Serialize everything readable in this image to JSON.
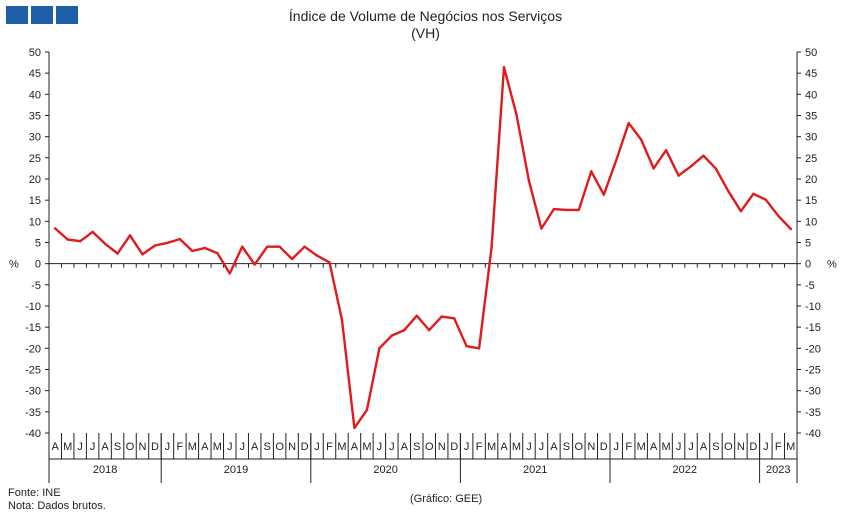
{
  "logo_color": "#1f5ea8",
  "chart_data": {
    "type": "line",
    "title": "Índice de Volume de Negócios nos Serviços",
    "subtitle": "(VH)",
    "ylabel_left": "%",
    "ylabel_right": "%",
    "ylim": [
      -40,
      50
    ],
    "yticks": [
      50,
      45,
      40,
      35,
      30,
      25,
      20,
      15,
      10,
      5,
      0,
      -5,
      -10,
      -15,
      -20,
      -25,
      -30,
      -35,
      -40
    ],
    "grid": false,
    "legend": "none",
    "line_color": "#e31a1c",
    "months": [
      "A",
      "M",
      "J",
      "J",
      "A",
      "S",
      "O",
      "N",
      "D",
      "J",
      "F",
      "M",
      "A",
      "M",
      "J",
      "J",
      "A",
      "S",
      "O",
      "N",
      "D",
      "J",
      "F",
      "M",
      "A",
      "M",
      "J",
      "J",
      "A",
      "S",
      "O",
      "N",
      "D",
      "J",
      "F",
      "M",
      "A",
      "M",
      "J",
      "J",
      "A",
      "S",
      "O",
      "N",
      "D",
      "J",
      "F",
      "M",
      "A",
      "M",
      "J",
      "J",
      "A",
      "S",
      "O",
      "N",
      "D",
      "J",
      "F",
      "M"
    ],
    "years": [
      {
        "label": "2018",
        "count": 9
      },
      {
        "label": "2019",
        "count": 12
      },
      {
        "label": "2020",
        "count": 12
      },
      {
        "label": "2021",
        "count": 12
      },
      {
        "label": "2022",
        "count": 12
      },
      {
        "label": "2023",
        "count": 3
      }
    ],
    "values": [
      8.3,
      5.7,
      5.3,
      7.5,
      4.7,
      2.4,
      6.7,
      2.2,
      4.3,
      4.9,
      5.8,
      3.0,
      3.7,
      2.5,
      -2.3,
      4.0,
      -0.2,
      4.0,
      4.0,
      1.1,
      4.0,
      1.9,
      0.3,
      -13.3,
      -38.8,
      -34.6,
      -20.0,
      -17.0,
      -15.7,
      -12.3,
      -15.7,
      -12.5,
      -12.9,
      -19.5,
      -20.0,
      3.9,
      46.4,
      35.2,
      19.5,
      8.3,
      12.9,
      12.7,
      12.7,
      21.8,
      16.3,
      24.4,
      33.2,
      29.3,
      22.5,
      26.8,
      20.8,
      23.0,
      25.5,
      22.4,
      17.1,
      12.4,
      16.5,
      15.1,
      11.3,
      8.2
    ]
  },
  "footer": {
    "source": "Fonte: INE",
    "note": "Nota: Dados brutos.",
    "credit": "(Gráfico: GEE)"
  }
}
